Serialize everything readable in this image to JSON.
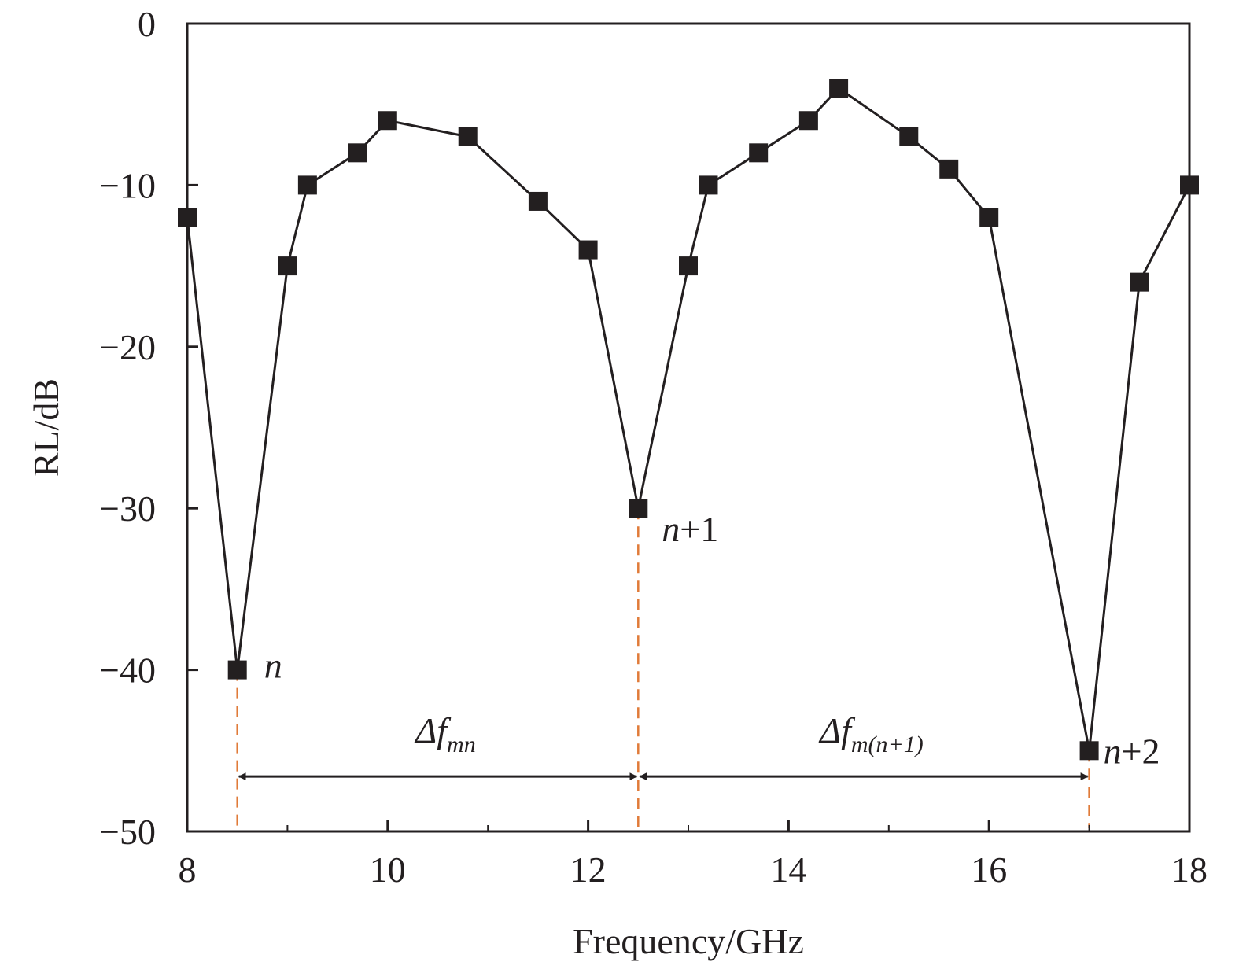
{
  "chart_data": {
    "type": "line",
    "title": "",
    "xlabel": "Frequency/GHz",
    "ylabel": "RL/dB",
    "xlim": [
      8,
      18
    ],
    "ylim": [
      -50,
      0
    ],
    "xticks": [
      8,
      10,
      12,
      14,
      16,
      18
    ],
    "yticks": [
      0,
      -10,
      -20,
      -30,
      -40,
      -50
    ],
    "xtick_labels": [
      "8",
      "10",
      "12",
      "14",
      "16",
      "18"
    ],
    "ytick_labels": [
      "0",
      "−10",
      "−20",
      "−30",
      "−40",
      "−50"
    ],
    "grid": false,
    "legend": "none",
    "series": [
      {
        "marker": "square",
        "color": "#231f20",
        "x": [
          8.0,
          8.5,
          9.0,
          9.2,
          9.7,
          10.0,
          10.8,
          11.5,
          12.0,
          12.5,
          13.0,
          13.2,
          13.7,
          14.2,
          14.5,
          15.2,
          15.6,
          16.0,
          17.0,
          17.5,
          18.0
        ],
        "y": [
          -12,
          -40,
          -15,
          -10,
          -8,
          -6,
          -7,
          -11,
          -14,
          -30,
          -15,
          -10,
          -8,
          -6,
          -4,
          -7,
          -9,
          -12,
          -45,
          -16,
          -10
        ]
      }
    ],
    "minima": [
      {
        "x": 8.5,
        "y": -40,
        "label": "n"
      },
      {
        "x": 12.5,
        "y": -30,
        "label": "n+1"
      },
      {
        "x": 17.0,
        "y": -45,
        "label": "n+2"
      }
    ],
    "spans": [
      {
        "from": 8.5,
        "to": 12.5,
        "label_main": "Δf",
        "label_sub": "mn"
      },
      {
        "from": 12.5,
        "to": 17.0,
        "label_main": "Δf",
        "label_sub": "m(n+1)"
      }
    ],
    "dashed_line_color": "#e07b39"
  }
}
